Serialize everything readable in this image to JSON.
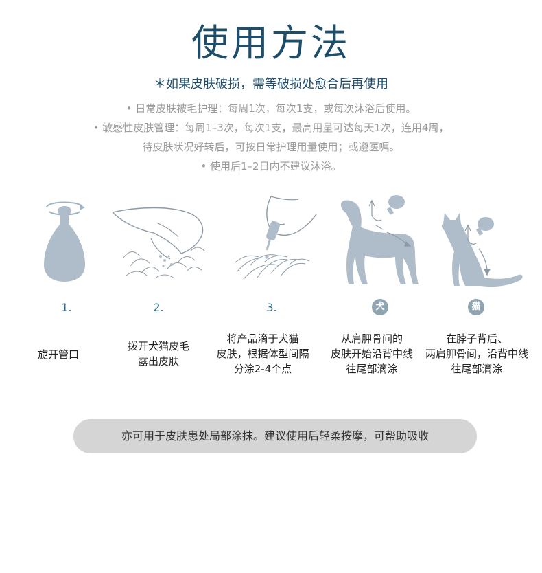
{
  "header": {
    "title": "使用方法",
    "warning": "＊如果皮肤破损，需等破损处愈合后再使用"
  },
  "guidance": {
    "line1": "• 日常皮肤被毛护理：每周1次，每次1支，或每次沐浴后使用。",
    "line2": "• 敏感性皮肤管理：每周1–3次，每次1支，最高用量可达每天1次，连用4周，",
    "line3": "待皮肤状况好转后，可按日常护理用量使用；或遵医嘱。",
    "line4": "• 使用后1–2日内不建议沐浴。"
  },
  "steps": [
    {
      "num": "1.",
      "text": "旋开管口",
      "icon": "bottle-twist-icon"
    },
    {
      "num": "2.",
      "text": "拨开犬猫皮毛\n露出皮肤",
      "icon": "hand-parting-fur-icon"
    },
    {
      "num": "3.",
      "text": "将产品滴于犬猫\n皮肤，根据体型间隔\n分涂2-4个点",
      "icon": "applying-drops-icon"
    },
    {
      "num": "犬",
      "text": "从肩胛骨间的\n皮肤开始沿背中线\n往尾部滴涂",
      "icon": "dog-silhouette-icon"
    },
    {
      "num": "猫",
      "text": "在脖子背后、\n两肩胛骨间，沿背中线\n往尾部滴涂",
      "icon": "cat-silhouette-icon"
    }
  ],
  "note": "亦可用于皮肤患处局部涂抹。建议使用后轻柔按摩，可帮助吸收",
  "colors": {
    "title": "#1f4e6b",
    "accent": "#2f6a8f",
    "icon_fill": "#aebdc9",
    "pill": "#d5d5d5"
  }
}
